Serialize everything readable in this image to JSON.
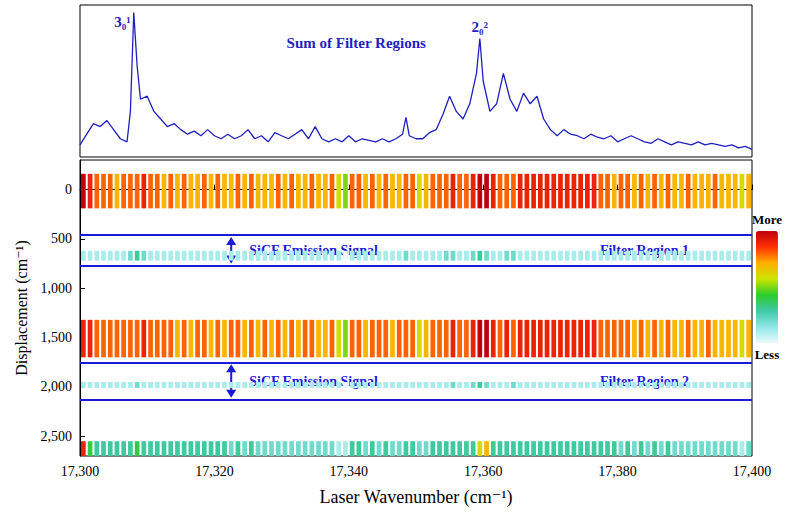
{
  "chart_data": [
    {
      "type": "line",
      "title": "Sum of Filter Regions",
      "color": "#1f1fbf",
      "xlim": [
        17300,
        17400
      ],
      "ylim": [
        0,
        100
      ],
      "tick_labels": false,
      "x": [
        17300,
        17301,
        17302,
        17303,
        17304,
        17305,
        17306,
        17307,
        17307.5,
        17308,
        17308.5,
        17309,
        17310,
        17311,
        17312,
        17313,
        17314,
        17315,
        17316,
        17317,
        17318,
        17319,
        17320,
        17321,
        17322,
        17323,
        17324,
        17325,
        17326,
        17327,
        17328,
        17329,
        17330,
        17331,
        17332,
        17333,
        17334,
        17335,
        17336,
        17337,
        17338,
        17339,
        17340,
        17341,
        17342,
        17343,
        17344,
        17345,
        17346,
        17347,
        17348,
        17348.5,
        17349,
        17350,
        17351,
        17352,
        17353,
        17354,
        17355,
        17356,
        17357,
        17358,
        17359,
        17359.5,
        17360,
        17361,
        17362,
        17363,
        17364,
        17365,
        17366,
        17367,
        17368,
        17369,
        17370,
        17371,
        17372,
        17373,
        17374,
        17375,
        17376,
        17377,
        17378,
        17379,
        17380,
        17381,
        17382,
        17383,
        17384,
        17385,
        17386,
        17387,
        17388,
        17389,
        17390,
        17391,
        17392,
        17393,
        17394,
        17395,
        17396,
        17397,
        17398,
        17399,
        17400
      ],
      "values": [
        8,
        15,
        22,
        20,
        24,
        18,
        12,
        10,
        30,
        95,
        60,
        38,
        40,
        30,
        25,
        20,
        22,
        18,
        15,
        17,
        14,
        18,
        14,
        12,
        15,
        12,
        14,
        18,
        12,
        14,
        10,
        16,
        14,
        12,
        15,
        18,
        12,
        20,
        12,
        10,
        12,
        10,
        14,
        10,
        12,
        11,
        10,
        12,
        10,
        12,
        15,
        26,
        14,
        12,
        12,
        16,
        18,
        28,
        40,
        30,
        25,
        35,
        55,
        78,
        50,
        30,
        35,
        55,
        38,
        30,
        42,
        35,
        40,
        25,
        18,
        14,
        18,
        15,
        14,
        12,
        15,
        13,
        12,
        14,
        10,
        12,
        14,
        12,
        10,
        9,
        12,
        10,
        8,
        10,
        9,
        8,
        10,
        8,
        9,
        8,
        7,
        8,
        6,
        7,
        5
      ],
      "peak_labels": [
        {
          "x": 17308,
          "label": "3₀¹"
        },
        {
          "x": 17359.5,
          "label": "2₀²"
        }
      ]
    },
    {
      "type": "heatmap",
      "x_label": "Laser Wavenumber (cm⁻¹)",
      "y_label": "Displacement (cm⁻¹)",
      "xlim": [
        17300,
        17400
      ],
      "xticks": [
        17300,
        17320,
        17340,
        17360,
        17380,
        17400
      ],
      "ylim": [
        -300,
        2700
      ],
      "yticks": [
        0,
        500,
        1000,
        1500,
        2000,
        2500
      ],
      "x_bins": [
        17300,
        17301,
        17302,
        17303,
        17304,
        17305,
        17306,
        17307,
        17308,
        17309,
        17310,
        17311,
        17312,
        17313,
        17314,
        17315,
        17316,
        17317,
        17318,
        17319,
        17320,
        17321,
        17322,
        17323,
        17324,
        17325,
        17326,
        17327,
        17328,
        17329,
        17330,
        17331,
        17332,
        17333,
        17334,
        17335,
        17336,
        17337,
        17338,
        17339,
        17340,
        17341,
        17342,
        17343,
        17344,
        17345,
        17346,
        17347,
        17348,
        17349,
        17350,
        17351,
        17352,
        17353,
        17354,
        17355,
        17356,
        17357,
        17358,
        17359,
        17360,
        17361,
        17362,
        17363,
        17364,
        17365,
        17366,
        17367,
        17368,
        17369,
        17370,
        17371,
        17372,
        17373,
        17374,
        17375,
        17376,
        17377,
        17378,
        17379,
        17380,
        17381,
        17382,
        17383,
        17384,
        17385,
        17386,
        17387,
        17388,
        17389,
        17390,
        17391,
        17392,
        17393,
        17394,
        17395,
        17396,
        17397,
        17398,
        17399,
        17400
      ],
      "y_bins": [
        [
          -160,
          190
        ],
        [
          620,
          720
        ],
        [
          1320,
          1700
        ],
        [
          1950,
          2010
        ],
        [
          2550,
          2700
        ]
      ],
      "cells": [
        [
          10,
          9,
          8,
          8,
          8,
          7,
          8,
          8,
          8,
          9,
          8,
          8,
          7,
          8,
          7,
          8,
          7,
          7,
          8,
          7,
          8,
          7,
          7,
          8,
          7,
          8,
          7,
          7,
          7,
          8,
          7,
          8,
          7,
          7,
          8,
          7,
          7,
          8,
          6,
          5,
          8,
          8,
          7,
          8,
          7,
          8,
          7,
          7,
          8,
          8,
          6,
          7,
          8,
          8,
          8,
          9,
          8,
          8,
          9,
          10,
          10,
          9,
          8,
          8,
          8,
          9,
          9,
          9,
          9,
          9,
          9,
          9,
          9,
          9,
          9,
          9,
          9,
          8,
          8,
          7,
          8,
          8,
          7,
          8,
          7,
          8,
          7,
          8,
          7,
          7,
          8,
          7,
          7,
          7,
          8,
          7,
          7,
          7,
          6,
          7
        ],
        [
          1,
          1,
          1,
          1,
          1,
          1,
          1,
          2,
          3,
          2,
          1,
          1,
          1,
          1,
          1,
          1,
          1,
          1,
          1,
          1,
          1,
          1,
          1,
          1,
          1,
          1,
          1,
          1,
          1,
          1,
          1,
          1,
          1,
          1,
          1,
          1,
          1,
          1,
          1,
          0,
          1,
          1,
          1,
          1,
          1,
          1,
          1,
          1,
          2,
          1,
          1,
          1,
          1,
          1,
          2,
          2,
          1,
          1,
          2,
          3,
          2,
          1,
          1,
          2,
          2,
          1,
          1,
          1,
          1,
          1,
          1,
          1,
          1,
          1,
          1,
          1,
          1,
          1,
          1,
          1,
          1,
          1,
          1,
          1,
          1,
          1,
          1,
          1,
          1,
          1,
          1,
          1,
          1,
          1,
          1,
          1,
          1,
          1,
          1,
          1
        ],
        [
          9,
          9,
          8,
          8,
          8,
          8,
          8,
          8,
          8,
          9,
          8,
          8,
          8,
          8,
          7,
          8,
          7,
          8,
          8,
          7,
          8,
          7,
          8,
          8,
          7,
          8,
          7,
          8,
          7,
          8,
          7,
          8,
          7,
          8,
          8,
          7,
          7,
          8,
          6,
          5,
          8,
          8,
          7,
          8,
          8,
          8,
          7,
          8,
          8,
          8,
          6,
          7,
          8,
          8,
          8,
          9,
          8,
          8,
          9,
          10,
          10,
          9,
          8,
          9,
          8,
          9,
          9,
          9,
          9,
          9,
          9,
          9,
          9,
          9,
          9,
          9,
          9,
          8,
          8,
          8,
          8,
          8,
          7,
          8,
          7,
          8,
          7,
          8,
          7,
          7,
          8,
          7,
          7,
          8,
          7,
          7,
          7,
          7,
          6,
          7
        ],
        [
          1,
          1,
          1,
          1,
          1,
          1,
          1,
          1,
          2,
          1,
          1,
          1,
          1,
          1,
          1,
          1,
          1,
          1,
          1,
          1,
          1,
          1,
          1,
          1,
          1,
          1,
          1,
          1,
          1,
          1,
          1,
          1,
          1,
          1,
          1,
          1,
          1,
          1,
          1,
          0,
          1,
          1,
          1,
          1,
          1,
          1,
          1,
          1,
          1,
          1,
          1,
          1,
          1,
          1,
          1,
          2,
          1,
          1,
          2,
          3,
          2,
          1,
          1,
          1,
          2,
          1,
          1,
          1,
          1,
          1,
          1,
          1,
          1,
          1,
          1,
          1,
          1,
          1,
          1,
          1,
          1,
          1,
          1,
          1,
          1,
          1,
          1,
          1,
          1,
          1,
          1,
          1,
          1,
          1,
          1,
          1,
          1,
          1,
          1,
          1
        ],
        [
          9,
          4,
          3,
          3,
          3,
          3,
          3,
          3,
          4,
          3,
          3,
          3,
          3,
          3,
          3,
          3,
          3,
          3,
          3,
          3,
          3,
          3,
          2,
          3,
          2,
          3,
          2,
          2,
          2,
          2,
          2,
          2,
          2,
          2,
          2,
          2,
          2,
          2,
          1,
          1,
          3,
          3,
          2,
          3,
          2,
          3,
          2,
          2,
          3,
          3,
          2,
          2,
          3,
          3,
          3,
          3,
          3,
          3,
          3,
          6,
          7,
          3,
          3,
          3,
          3,
          3,
          3,
          3,
          3,
          3,
          3,
          3,
          3,
          3,
          3,
          3,
          3,
          3,
          3,
          3,
          2,
          3,
          2,
          3,
          2,
          3,
          2,
          3,
          2,
          2,
          2,
          2,
          2,
          2,
          2,
          2,
          2,
          2,
          1,
          2
        ]
      ],
      "colorbar": {
        "range": [
          0,
          10
        ],
        "labels": [
          "More",
          "Less"
        ]
      },
      "filter_regions": [
        {
          "label": "Filter Region 1",
          "range": [
            460,
            770
          ],
          "signal_label": "SiCF Emission Signal"
        },
        {
          "label": "Filter Region 2",
          "range": [
            1750,
            2130
          ],
          "signal_label": "SiCF Emission Signal"
        }
      ]
    }
  ]
}
